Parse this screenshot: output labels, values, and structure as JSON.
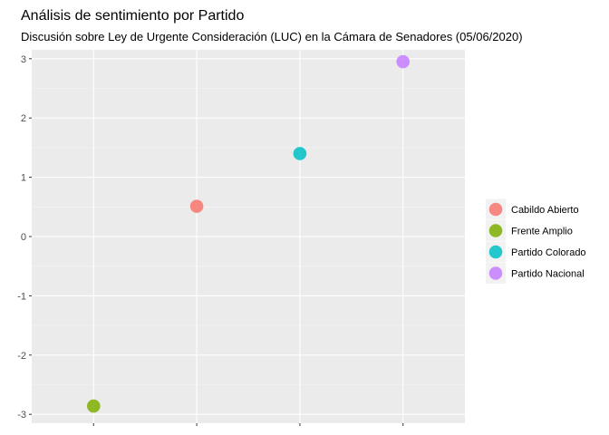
{
  "chart_data": {
    "type": "scatter",
    "title": "Análisis de sentimiento por Partido",
    "subtitle": "Discusión sobre Ley de Urgente Consideración (LUC) en la Cámara de Senadores (05/06/2020)",
    "xlabel": "",
    "ylabel": "",
    "x_tick_labels": [
      "",
      "",
      "",
      ""
    ],
    "y_ticks": [
      -3,
      -2,
      -1,
      0,
      1,
      2,
      3
    ],
    "ylim": [
      -3.15,
      3.15
    ],
    "grid": true,
    "legend_position": "right",
    "series": [
      {
        "name": "Cabildo Abierto",
        "x": 2,
        "y": 0.51,
        "color": "#F8766D"
      },
      {
        "name": "Frente Amplio",
        "x": 1,
        "y": -2.86,
        "color": "#7CAE00"
      },
      {
        "name": "Partido Colorado",
        "x": 3,
        "y": 1.4,
        "color": "#00BFC4"
      },
      {
        "name": "Partido Nacional",
        "x": 4,
        "y": 2.95,
        "color": "#C77CFF"
      }
    ]
  }
}
